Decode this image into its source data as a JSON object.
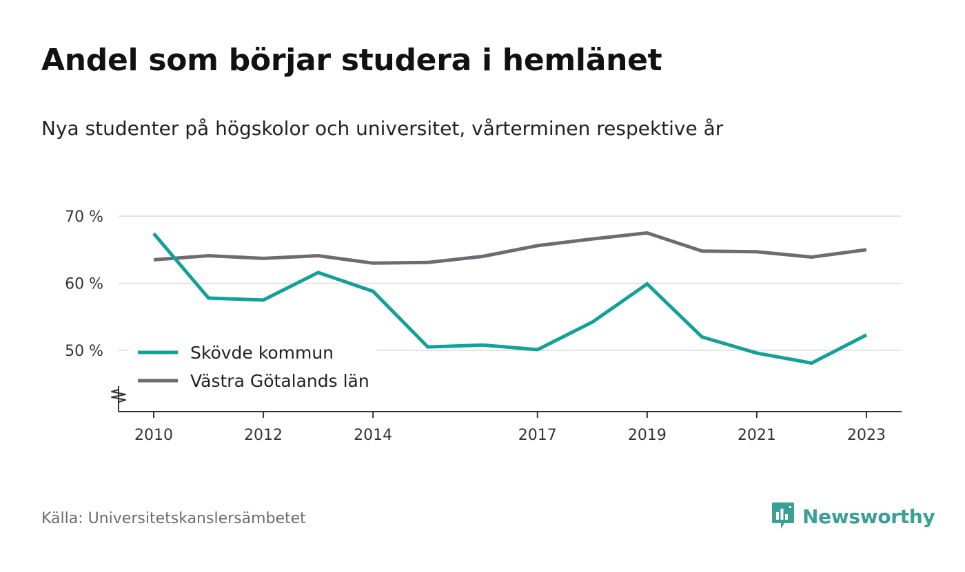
{
  "title": "Andel som börjar studera i hemlänet",
  "subtitle": "Nya studenter på högskolor och universitet, vårterminen respektive år",
  "source": "Källa: Universitetskanslersämbetet",
  "brand": {
    "name": "Newsworthy",
    "icon": "newsworthy-logo-icon",
    "color": "#3a9f97"
  },
  "chart_data": {
    "type": "line",
    "x": [
      2010,
      2011,
      2012,
      2013,
      2014,
      2015,
      2016,
      2017,
      2018,
      2019,
      2020,
      2021,
      2022,
      2023
    ],
    "x_tick_values": [
      2010,
      2012,
      2014,
      2017,
      2019,
      2021,
      2023
    ],
    "x_tick_labels": [
      "2010",
      "2012",
      "2014",
      "2017",
      "2019",
      "2021",
      "2023"
    ],
    "y_tick_values": [
      50,
      60,
      70
    ],
    "y_tick_labels": [
      "50 %",
      "60 %",
      "70 %"
    ],
    "ylim": [
      41,
      70
    ],
    "y_axis_break": true,
    "grid": true,
    "legend_position": "bottom-left",
    "series": [
      {
        "name": "Skövde kommun",
        "color": "#12a19a",
        "values": [
          67.4,
          57.8,
          57.5,
          61.6,
          58.8,
          50.5,
          50.8,
          50.1,
          54.2,
          59.9,
          52.0,
          49.6,
          48.1,
          52.3
        ]
      },
      {
        "name": "Västra Götalands län",
        "color": "#6d6c71",
        "values": [
          63.5,
          64.1,
          63.7,
          64.1,
          63.0,
          63.1,
          64.0,
          65.6,
          66.6,
          67.5,
          64.8,
          64.7,
          63.9,
          65.0
        ]
      }
    ]
  }
}
